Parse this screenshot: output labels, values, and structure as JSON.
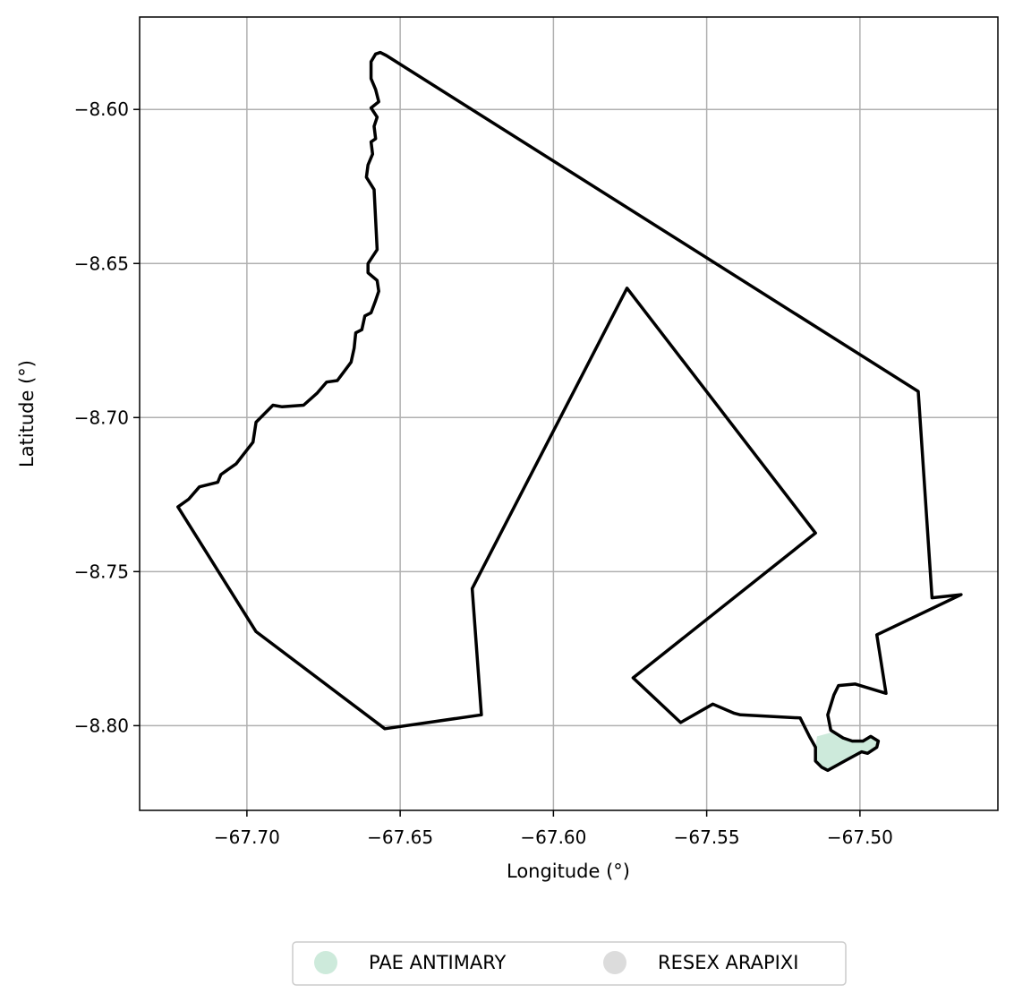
{
  "chart_data": {
    "type": "map",
    "xlabel": "Longitude (°)",
    "ylabel": "Latitude (°)",
    "xlim": [
      -67.735,
      -67.455
    ],
    "ylim": [
      -8.8275,
      -8.57
    ],
    "xticks": [
      -67.7,
      -67.65,
      -67.6,
      -67.55,
      -67.5
    ],
    "xtick_labels": [
      "−67.70",
      "−67.65",
      "−67.60",
      "−67.55",
      "−67.50"
    ],
    "yticks": [
      -8.6,
      -8.65,
      -8.7,
      -8.75,
      -8.8
    ],
    "ytick_labels": [
      "−8.60",
      "−8.65",
      "−8.70",
      "−8.75",
      "−8.80"
    ],
    "grid": true,
    "legend": {
      "placement": "bottom-center-outside",
      "entries": [
        {
          "name": "PAE ANTIMARY",
          "color": "#cdeadb"
        },
        {
          "name": "RESEX ARAPIXI",
          "color": "#dcdcdc"
        }
      ]
    },
    "fill_polygon": {
      "name": "PAE ANTIMARY",
      "color": "#cdeadb",
      "coords": [
        [
          -67.514,
          -8.8035
        ],
        [
          -67.5085,
          -8.802
        ],
        [
          -67.5055,
          -8.804
        ],
        [
          -67.5025,
          -8.805
        ],
        [
          -67.499,
          -8.805
        ],
        [
          -67.4965,
          -8.8035
        ],
        [
          -67.494,
          -8.805
        ],
        [
          -67.4945,
          -8.807
        ],
        [
          -67.4975,
          -8.809
        ],
        [
          -67.4995,
          -8.8085
        ],
        [
          -67.505,
          -8.8115
        ],
        [
          -67.5105,
          -8.8145
        ],
        [
          -67.5125,
          -8.8135
        ],
        [
          -67.5145,
          -8.8115
        ],
        [
          -67.5145,
          -8.807
        ]
      ]
    },
    "boundary": {
      "color": "#000000",
      "coords": [
        [
          -67.6565,
          -8.5815
        ],
        [
          -67.6545,
          -8.5825
        ],
        [
          -67.481,
          -8.6915
        ],
        [
          -67.4765,
          -8.7585
        ],
        [
          -67.467,
          -8.7575
        ],
        [
          -67.4945,
          -8.7705
        ],
        [
          -67.4915,
          -8.7895
        ],
        [
          -67.5015,
          -8.7865
        ],
        [
          -67.507,
          -8.787
        ],
        [
          -67.5085,
          -8.79
        ],
        [
          -67.5105,
          -8.7965
        ],
        [
          -67.5095,
          -8.8015
        ],
        [
          -67.5055,
          -8.804
        ],
        [
          -67.5025,
          -8.805
        ],
        [
          -67.499,
          -8.805
        ],
        [
          -67.4965,
          -8.8035
        ],
        [
          -67.494,
          -8.805
        ],
        [
          -67.4945,
          -8.807
        ],
        [
          -67.4975,
          -8.809
        ],
        [
          -67.4995,
          -8.8085
        ],
        [
          -67.505,
          -8.8115
        ],
        [
          -67.5105,
          -8.8145
        ],
        [
          -67.5125,
          -8.8135
        ],
        [
          -67.5145,
          -8.8115
        ],
        [
          -67.5145,
          -8.807
        ],
        [
          -67.5165,
          -8.8035
        ],
        [
          -67.5195,
          -8.7975
        ],
        [
          -67.539,
          -8.7965
        ],
        [
          -67.541,
          -8.796
        ],
        [
          -67.548,
          -8.793
        ],
        [
          -67.5585,
          -8.799
        ],
        [
          -67.574,
          -8.7845
        ],
        [
          -67.5145,
          -8.7375
        ],
        [
          -67.576,
          -8.658
        ],
        [
          -67.6265,
          -8.7555
        ],
        [
          -67.6235,
          -8.7965
        ],
        [
          -67.655,
          -8.801
        ],
        [
          -67.697,
          -8.7695
        ],
        [
          -67.7225,
          -8.729
        ],
        [
          -67.719,
          -8.7265
        ],
        [
          -67.7155,
          -8.7225
        ],
        [
          -67.7095,
          -8.721
        ],
        [
          -67.7085,
          -8.7185
        ],
        [
          -67.7035,
          -8.715
        ],
        [
          -67.698,
          -8.708
        ],
        [
          -67.697,
          -8.7015
        ],
        [
          -67.6915,
          -8.696
        ],
        [
          -67.6885,
          -8.6965
        ],
        [
          -67.6815,
          -8.696
        ],
        [
          -67.677,
          -8.692
        ],
        [
          -67.674,
          -8.6885
        ],
        [
          -67.6705,
          -8.688
        ],
        [
          -67.666,
          -8.682
        ],
        [
          -67.665,
          -8.6775
        ],
        [
          -67.6645,
          -8.6725
        ],
        [
          -67.6625,
          -8.6715
        ],
        [
          -67.6615,
          -8.667
        ],
        [
          -67.6595,
          -8.666
        ],
        [
          -67.658,
          -8.662
        ],
        [
          -67.657,
          -8.659
        ],
        [
          -67.6575,
          -8.6555
        ],
        [
          -67.6605,
          -8.653
        ],
        [
          -67.6605,
          -8.65
        ],
        [
          -67.6575,
          -8.6455
        ],
        [
          -67.6585,
          -8.626
        ],
        [
          -67.661,
          -8.622
        ],
        [
          -67.6605,
          -8.618
        ],
        [
          -67.659,
          -8.6145
        ],
        [
          -67.6595,
          -8.6105
        ],
        [
          -67.658,
          -8.6095
        ],
        [
          -67.6585,
          -8.6055
        ],
        [
          -67.6575,
          -8.6025
        ],
        [
          -67.6595,
          -8.5995
        ],
        [
          -67.657,
          -8.5975
        ],
        [
          -67.658,
          -8.5935
        ],
        [
          -67.6595,
          -8.59
        ],
        [
          -67.6595,
          -8.5845
        ],
        [
          -67.658,
          -8.582
        ],
        [
          -67.6565,
          -8.5815
        ]
      ]
    }
  }
}
